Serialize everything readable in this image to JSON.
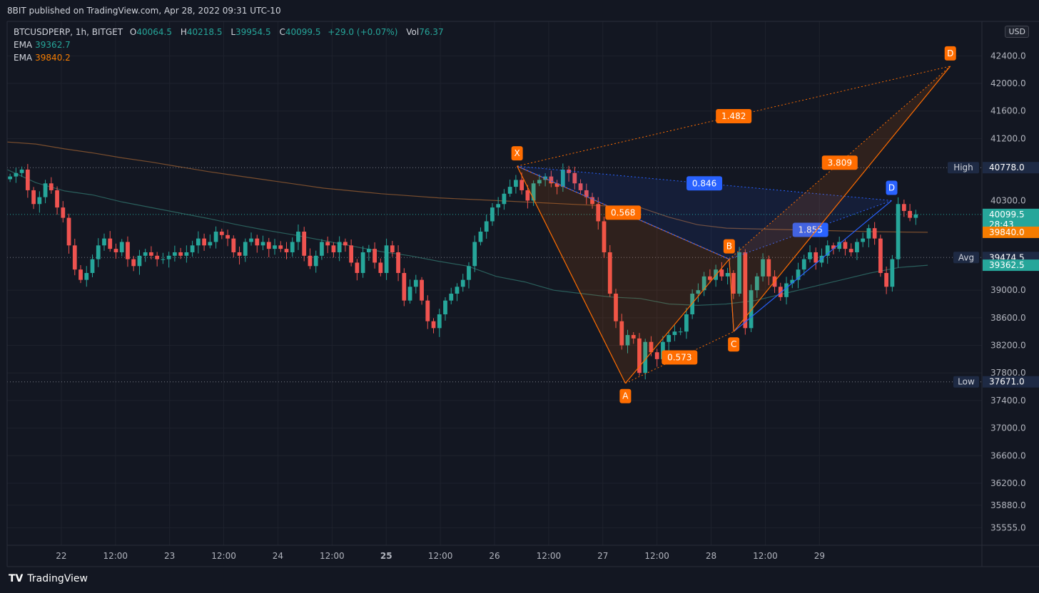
{
  "header": {
    "published": "8BIT published on TradingView.com, Apr 28, 2022 09:31 UTC-10",
    "symbol": "BTCUSDPERP, 1h, BITGET",
    "o_label": "O",
    "o_value": "40064.5",
    "h_label": "H",
    "h_value": "40218.5",
    "l_label": "L",
    "l_value": "39954.5",
    "c_label": "C",
    "c_value": "40099.5",
    "change": "+29.0 (+0.07%)",
    "vol_label": "Vol",
    "vol_value": "76.37",
    "ema1_label": "EMA",
    "ema1_value": "39362.7",
    "ema2_label": "EMA",
    "ema2_value": "39840.2"
  },
  "currency": "USD",
  "footer": {
    "brand": "TradingView",
    "logo": "TV"
  },
  "colors": {
    "bg": "#131722",
    "grid": "#1e222d",
    "up": "#26a69a",
    "down": "#ef5350",
    "ema1": "#2a5f5c",
    "ema2": "#7a4e2e",
    "pattern_orange": "#ff6d00",
    "pattern_blue": "#2962ff"
  },
  "chart_data": {
    "type": "candlestick",
    "ylim": [
      35300,
      42900
    ],
    "y_ticks": [
      "42400.0",
      "42000.0",
      "41600.0",
      "41200.0",
      "39000.0",
      "38600.0",
      "38200.0",
      "37800.0",
      "37400.0",
      "37000.0",
      "36600.0",
      "36200.0",
      "35880.0",
      "35555.0"
    ],
    "x_ticks": [
      {
        "label": "22",
        "bold": false
      },
      {
        "label": "12:00",
        "bold": false
      },
      {
        "label": "23",
        "bold": false
      },
      {
        "label": "12:00",
        "bold": false
      },
      {
        "label": "24",
        "bold": false
      },
      {
        "label": "12:00",
        "bold": false
      },
      {
        "label": "25",
        "bold": true
      },
      {
        "label": "12:00",
        "bold": false
      },
      {
        "label": "26",
        "bold": false
      },
      {
        "label": "12:00",
        "bold": false
      },
      {
        "label": "27",
        "bold": false
      },
      {
        "label": "12:00",
        "bold": false
      },
      {
        "label": "28",
        "bold": false
      },
      {
        "label": "12:00",
        "bold": false
      },
      {
        "label": "29",
        "bold": false
      }
    ],
    "x_start_hours": -12,
    "x_end_hours": 204,
    "closes": [
      40650,
      40700,
      40750,
      40450,
      40250,
      40350,
      40550,
      40450,
      40200,
      40050,
      39650,
      39300,
      39150,
      39250,
      39450,
      39650,
      39750,
      39600,
      39550,
      39700,
      39450,
      39350,
      39500,
      39550,
      39500,
      39450,
      39450,
      39500,
      39550,
      39500,
      39550,
      39650,
      39750,
      39650,
      39700,
      39850,
      39800,
      39750,
      39550,
      39500,
      39700,
      39750,
      39650,
      39700,
      39600,
      39650,
      39600,
      39550,
      39700,
      39850,
      39500,
      39350,
      39500,
      39700,
      39650,
      39550,
      39700,
      39650,
      39400,
      39250,
      39550,
      39600,
      39400,
      39250,
      39650,
      39550,
      39250,
      38850,
      39050,
      39150,
      38850,
      38550,
      38450,
      38650,
      38850,
      38950,
      39050,
      39150,
      39350,
      39700,
      39850,
      40000,
      40200,
      40250,
      40400,
      40500,
      40600,
      40450,
      40300,
      40550,
      40600,
      40650,
      40550,
      40500,
      40750,
      40700,
      40550,
      40450,
      40350,
      40250,
      40000,
      39550,
      38950,
      38550,
      38200,
      38350,
      38300,
      37800,
      38250,
      38100,
      38000,
      38250,
      38350,
      38400,
      38400,
      38650,
      38950,
      39000,
      39200,
      39150,
      39300,
      39200,
      39250,
      38950,
      39550,
      38450,
      39000,
      39200,
      39450,
      39200,
      39050,
      38900,
      39100,
      39150,
      39300,
      39450,
      39550,
      39400,
      39500,
      39650,
      39600,
      39700,
      39600,
      39550,
      39700,
      39750,
      39900,
      39750,
      39250,
      39050,
      39450,
      40250,
      40150,
      40050,
      40099.5
    ],
    "ema1": [
      40750,
      40560,
      40440,
      40380,
      40280,
      40200,
      40120,
      40040,
      39950,
      39870,
      39800,
      39720,
      39640,
      39560,
      39500,
      39420,
      39350,
      39200,
      39120,
      39000,
      38950,
      38900,
      38880,
      38800,
      38780,
      38800,
      38850,
      38950,
      39050,
      39150,
      39250,
      39330,
      39362.7
    ],
    "ema2": [
      41150,
      41120,
      41050,
      40990,
      40920,
      40860,
      40790,
      40720,
      40660,
      40600,
      40540,
      40480,
      40440,
      40400,
      40370,
      40340,
      40320,
      40300,
      40280,
      40260,
      40240,
      40220,
      40200,
      40060,
      39950,
      39900,
      39890,
      39880,
      39870,
      39860,
      39850,
      39845,
      39840.2
    ],
    "price_markers": [
      {
        "tag": "High",
        "value": 40778.0,
        "label": "40778.0",
        "style": "dark"
      },
      {
        "tag": "",
        "value": 40300.0,
        "label": "40300.0",
        "style": "tick"
      },
      {
        "tag": "",
        "value": 40099.5,
        "label": "40099.5",
        "sub": "28:43",
        "style": "teal"
      },
      {
        "tag": "",
        "value": 39840.0,
        "label": "39840.0",
        "style": "orange"
      },
      {
        "tag": "Avg",
        "value": 39474.5,
        "label": "39474.5",
        "style": "dark"
      },
      {
        "tag": "",
        "value": 39362.5,
        "label": "39362.5",
        "style": "teal"
      },
      {
        "tag": "Low",
        "value": 37671.0,
        "label": "37671.0",
        "style": "dark"
      }
    ],
    "pattern_orange": {
      "points": [
        {
          "name": "X",
          "hour": 101,
          "price": 40800
        },
        {
          "name": "A",
          "hour": 125,
          "price": 37650
        },
        {
          "name": "B",
          "hour": 148,
          "price": 39450
        },
        {
          "name": "C",
          "hour": 149,
          "price": 38400
        },
        {
          "name": "D",
          "hour": 197,
          "price": 42250
        }
      ],
      "ratios": [
        {
          "label": "1.482",
          "between": [
            "X",
            "D"
          ]
        },
        {
          "label": "0.568",
          "between": [
            "X",
            "B"
          ]
        },
        {
          "label": "0.573",
          "between": [
            "A",
            "C"
          ]
        },
        {
          "label": "3.809",
          "between": [
            "B",
            "D"
          ]
        }
      ]
    },
    "pattern_blue": {
      "points": [
        {
          "name": "X",
          "hour": 101,
          "price": 40800
        },
        {
          "name": "B",
          "hour": 148,
          "price": 39450
        },
        {
          "name": "C",
          "hour": 149,
          "price": 38400
        },
        {
          "name": "D",
          "hour": 184,
          "price": 40300
        }
      ],
      "ratios": [
        {
          "label": "0.846",
          "between": [
            "X",
            "D"
          ]
        },
        {
          "label": "1.855",
          "between": [
            "B",
            "D"
          ]
        }
      ]
    }
  }
}
